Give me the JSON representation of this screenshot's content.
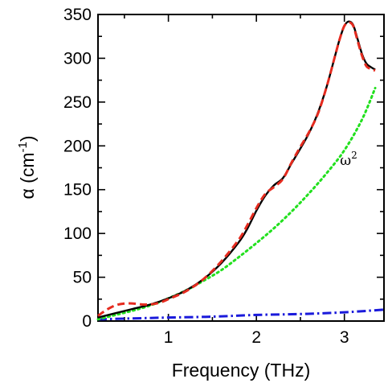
{
  "chart_data": {
    "type": "line",
    "xlabel": "Frequency (THz)",
    "ylabel": {
      "symbol": "α",
      "unit_open": " (cm",
      "exponent": "-1",
      "unit_close": ")"
    },
    "xlim": [
      0.2,
      3.45
    ],
    "ylim": [
      0,
      350
    ],
    "x_ticks": [
      1,
      2,
      3
    ],
    "y_ticks": [
      0,
      50,
      100,
      150,
      200,
      250,
      300,
      350
    ],
    "x_tick_labels": [
      "1",
      "2",
      "3"
    ],
    "y_tick_labels": [
      "0",
      "50",
      "100",
      "150",
      "200",
      "250",
      "300",
      "350"
    ],
    "annotation": {
      "base": "ω",
      "exponent": "2",
      "x": 2.95,
      "y": 178
    },
    "grid": false,
    "legend": "none",
    "series": [
      {
        "id": "measured",
        "color": "#000000",
        "style": "solid",
        "x": [
          0.2,
          0.4,
          0.6,
          0.8,
          1.0,
          1.2,
          1.4,
          1.6,
          1.8,
          1.9,
          2.0,
          2.1,
          2.2,
          2.3,
          2.4,
          2.5,
          2.6,
          2.7,
          2.8,
          2.9,
          2.95,
          3.0,
          3.05,
          3.1,
          3.15,
          3.2,
          3.25,
          3.3,
          3.35
        ],
        "y": [
          4,
          9,
          14,
          19,
          26,
          35,
          48,
          66,
          90,
          106,
          126,
          143,
          155,
          163,
          180,
          197,
          215,
          238,
          268,
          305,
          323,
          337,
          342,
          338,
          322,
          305,
          294,
          290,
          287
        ]
      },
      {
        "id": "fit",
        "color": "#e52b1f",
        "style": "dashed",
        "x": [
          0.2,
          0.3,
          0.4,
          0.5,
          0.6,
          0.7,
          0.8,
          0.9,
          1.0,
          1.2,
          1.4,
          1.6,
          1.8,
          1.9,
          2.0,
          2.1,
          2.2,
          2.3,
          2.4,
          2.5,
          2.6,
          2.7,
          2.8,
          2.9,
          2.95,
          3.0,
          3.05,
          3.1,
          3.15,
          3.2,
          3.25,
          3.3,
          3.35
        ],
        "y": [
          6,
          13,
          18,
          20,
          20,
          19,
          19,
          21,
          25,
          34,
          48,
          68,
          93,
          110,
          129,
          145,
          153,
          162,
          181,
          199,
          216,
          237,
          268,
          305,
          323,
          337,
          341,
          337,
          320,
          303,
          291,
          288,
          286
        ]
      },
      {
        "id": "omega-squared",
        "color": "#22e01e",
        "style": "dotted",
        "x": [
          0.2,
          0.4,
          0.6,
          0.8,
          1.0,
          1.2,
          1.4,
          1.6,
          1.8,
          2.0,
          2.2,
          2.4,
          2.6,
          2.8,
          3.0,
          3.2,
          3.35
        ],
        "y": [
          2,
          7,
          12,
          18,
          26,
          35,
          46,
          58,
          73,
          89,
          106,
          125,
          146,
          169,
          195,
          230,
          266
        ]
      },
      {
        "id": "baseline",
        "color": "#1a1adb",
        "style": "dashdot",
        "x": [
          0.2,
          0.6,
          1.0,
          1.5,
          2.0,
          2.5,
          3.0,
          3.45
        ],
        "y": [
          2,
          3,
          4,
          5,
          7,
          8,
          10,
          13
        ]
      }
    ]
  }
}
